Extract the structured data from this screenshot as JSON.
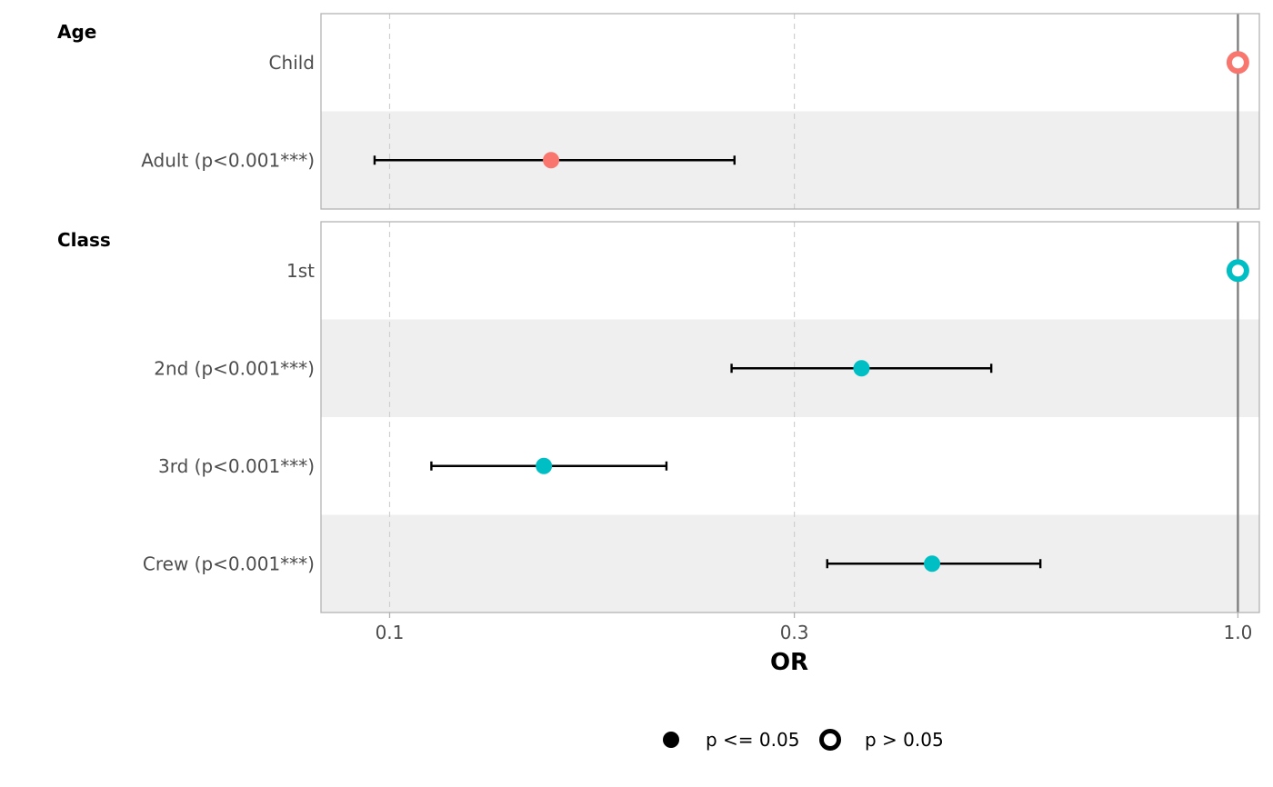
{
  "chart_data": {
    "type": "scatter",
    "subtype": "forest-plot",
    "xlabel": "OR",
    "x_scale": "log",
    "xlim": [
      0.083,
      1.06
    ],
    "x_ticks": [
      0.1,
      0.3,
      1.0
    ],
    "x_tick_labels": [
      "0.1",
      "0.3",
      "1.0"
    ],
    "reference_line": 1.0,
    "grid": "vertical-dashed",
    "legend_position": "bottom",
    "legend": [
      {
        "label": "p <= 0.05",
        "marker": "filled-circle"
      },
      {
        "label": "p > 0.05",
        "marker": "open-circle"
      }
    ],
    "groups": [
      {
        "name": "Age",
        "color": "#F8766D",
        "rows": [
          {
            "label": "Child",
            "or": 1.0,
            "lower": null,
            "upper": null,
            "significant": false
          },
          {
            "label": "Adult (p<0.001***)",
            "or": 0.155,
            "lower": 0.096,
            "upper": 0.255,
            "significant": true
          }
        ]
      },
      {
        "name": "Class",
        "color": "#00BFC4",
        "rows": [
          {
            "label": "1st",
            "or": 1.0,
            "lower": null,
            "upper": null,
            "significant": false
          },
          {
            "label": "2nd (p<0.001***)",
            "or": 0.36,
            "lower": 0.253,
            "upper": 0.512,
            "significant": true
          },
          {
            "label": "3rd (p<0.001***)",
            "or": 0.152,
            "lower": 0.112,
            "upper": 0.212,
            "significant": true
          },
          {
            "label": "Crew (p<0.001***)",
            "or": 0.436,
            "lower": 0.328,
            "upper": 0.585,
            "significant": true
          }
        ]
      }
    ]
  }
}
